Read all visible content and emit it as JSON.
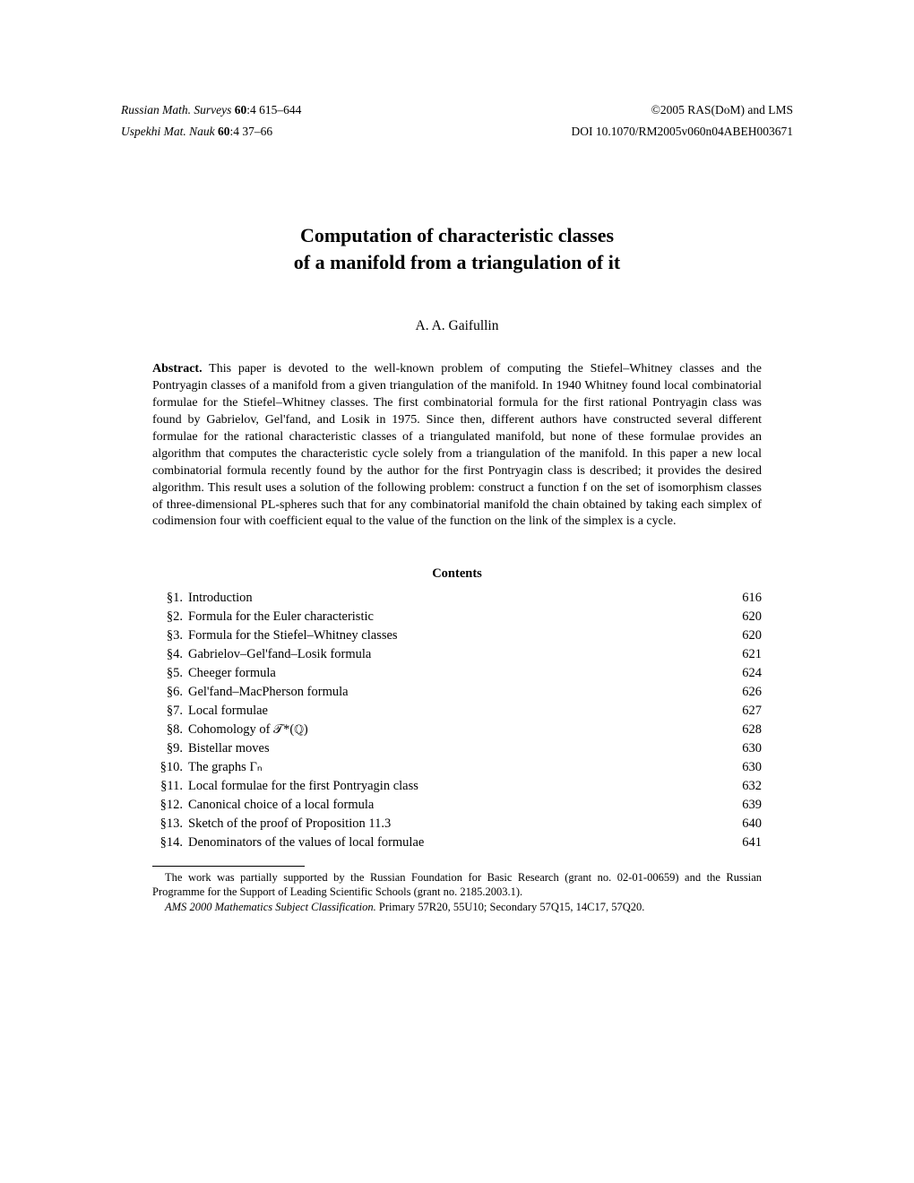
{
  "header": {
    "left_line1_journal": "Russian Math. Surveys",
    "left_line1_vol": "60",
    "left_line1_rest": ":4 615–644",
    "left_line2_journal": "Uspekhi Mat. Nauk",
    "left_line2_vol": "60",
    "left_line2_rest": ":4 37–66",
    "right_line1": "©2005 RAS(DoM) and LMS",
    "right_line2": "DOI 10.1070/RM2005v060n04ABEH003671"
  },
  "title": {
    "line1": "Computation of characteristic classes",
    "line2": "of a manifold from a triangulation of it"
  },
  "author": "A. A. Gaifullin",
  "abstract": {
    "label": "Abstract.",
    "text": " This paper is devoted to the well-known problem of computing the Stiefel–Whitney classes and the Pontryagin classes of a manifold from a given triangulation of the manifold. In 1940 Whitney found local combinatorial formulae for the Stiefel–Whitney classes. The first combinatorial formula for the first rational Pontryagin class was found by Gabrielov, Gel'fand, and Losik in 1975. Since then, different authors have constructed several different formulae for the rational characteristic classes of a triangulated manifold, but none of these formulae provides an algorithm that computes the characteristic cycle solely from a triangulation of the manifold. In this paper a new local combinatorial formula recently found by the author for the first Pontryagin class is described; it provides the desired algorithm. This result uses a solution of the following problem: construct a function f on the set of isomorphism classes of three-dimensional PL-spheres such that for any combinatorial manifold the chain obtained by taking each simplex of codimension four with coefficient equal to the value of the function on the link of the simplex is a cycle."
  },
  "contents_heading": "Contents",
  "toc": [
    {
      "label": "§1.",
      "title": "Introduction",
      "page": "616"
    },
    {
      "label": "§2.",
      "title": "Formula for the Euler characteristic",
      "page": "620"
    },
    {
      "label": "§3.",
      "title": "Formula for the Stiefel–Whitney classes",
      "page": "620"
    },
    {
      "label": "§4.",
      "title": "Gabrielov–Gel'fand–Losik formula",
      "page": "621"
    },
    {
      "label": "§5.",
      "title": "Cheeger formula",
      "page": "624"
    },
    {
      "label": "§6.",
      "title": "Gel'fand–MacPherson formula",
      "page": "626"
    },
    {
      "label": "§7.",
      "title": "Local formulae",
      "page": "627"
    },
    {
      "label": "§8.",
      "title": "Cohomology of 𝒯*(ℚ)",
      "page": "628"
    },
    {
      "label": "§9.",
      "title": "Bistellar moves",
      "page": "630"
    },
    {
      "label": "§10.",
      "title": "The graphs Γₙ",
      "page": "630"
    },
    {
      "label": "§11.",
      "title": "Local formulae for the first Pontryagin class",
      "page": "632"
    },
    {
      "label": "§12.",
      "title": "Canonical choice of a local formula",
      "page": "639"
    },
    {
      "label": "§13.",
      "title": "Sketch of the proof of Proposition 11.3",
      "page": "640"
    },
    {
      "label": "§14.",
      "title": "Denominators of the values of local formulae",
      "page": "641"
    }
  ],
  "footnote1": "The work was partially supported by the Russian Foundation for Basic Research (grant no. 02-01-00659) and the Russian Programme for the Support of Leading Scientific Schools (grant no. 2185.2003.1).",
  "footnote2_prefix": "AMS",
  "footnote2_italic": " 2000 Mathematics Subject Classification.",
  "footnote2_rest": " Primary 57R20, 55U10; Secondary 57Q15, 14C17, 57Q20."
}
